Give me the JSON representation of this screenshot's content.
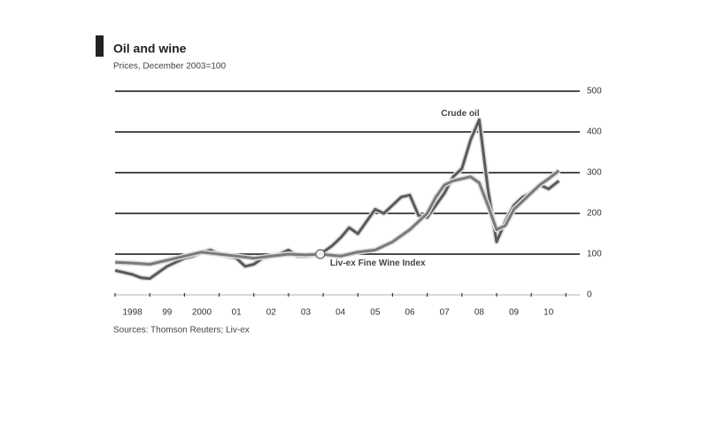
{
  "chart_data": {
    "type": "line",
    "title": "Oil and wine",
    "subtitle": "Prices, December 2003=100",
    "source": "Sources: Thomson Reuters; Liv-ex",
    "xlim": [
      1998,
      2011.4
    ],
    "xticks": [
      1998,
      1999,
      2000,
      2001,
      2002,
      2003,
      2004,
      2005,
      2006,
      2007,
      2008,
      2009,
      2010,
      2011
    ],
    "x_labels": [
      {
        "value": 1998.5,
        "label": "1998"
      },
      {
        "value": 1999.5,
        "label": "99"
      },
      {
        "value": 2000.5,
        "label": "2000"
      },
      {
        "value": 2001.5,
        "label": "01"
      },
      {
        "value": 2002.5,
        "label": "02"
      },
      {
        "value": 2003.5,
        "label": "03"
      },
      {
        "value": 2004.5,
        "label": "04"
      },
      {
        "value": 2005.5,
        "label": "05"
      },
      {
        "value": 2006.5,
        "label": "06"
      },
      {
        "value": 2007.5,
        "label": "07"
      },
      {
        "value": 2008.5,
        "label": "08"
      },
      {
        "value": 2009.5,
        "label": "09"
      },
      {
        "value": 2010.5,
        "label": "10"
      }
    ],
    "ylim": [
      0,
      500
    ],
    "yticks": [
      0,
      100,
      200,
      300,
      400,
      500
    ],
    "grid": true,
    "marker": {
      "x": 2003.917,
      "y": 100
    },
    "series": [
      {
        "name": "Crude oil",
        "color": "#5a5a5a",
        "x": [
          1998,
          1998.25,
          1998.5,
          1998.75,
          1999,
          1999.25,
          1999.5,
          1999.75,
          2000,
          2000.25,
          2000.5,
          2000.75,
          2001,
          2001.25,
          2001.5,
          2001.75,
          2002,
          2002.25,
          2002.5,
          2002.75,
          2003,
          2003.25,
          2003.5,
          2003.917,
          2004.25,
          2004.5,
          2004.75,
          2005,
          2005.25,
          2005.5,
          2005.75,
          2006,
          2006.25,
          2006.5,
          2006.75,
          2007,
          2007.25,
          2007.5,
          2007.75,
          2008,
          2008.25,
          2008.5,
          2008.75,
          2009,
          2009.25,
          2009.5,
          2009.75,
          2010,
          2010.25,
          2010.5,
          2010.8
        ],
        "values": [
          60,
          55,
          50,
          42,
          40,
          55,
          70,
          80,
          90,
          95,
          105,
          110,
          100,
          95,
          90,
          70,
          75,
          90,
          95,
          100,
          110,
          95,
          95,
          100,
          120,
          140,
          165,
          150,
          180,
          210,
          200,
          220,
          240,
          245,
          195,
          190,
          220,
          250,
          290,
          310,
          380,
          430,
          260,
          130,
          180,
          220,
          240,
          250,
          270,
          260,
          280
        ],
        "label_pos": {
          "x": 2007.4,
          "y": 445
        }
      },
      {
        "name": "Liv-ex Fine Wine Index",
        "color": "#7a7a7a",
        "x": [
          1998,
          1998.5,
          1999,
          1999.5,
          2000,
          2000.5,
          2001,
          2001.5,
          2002,
          2002.5,
          2003,
          2003.5,
          2003.917,
          2004.5,
          2005,
          2005.5,
          2006,
          2006.5,
          2007,
          2007.25,
          2007.5,
          2007.75,
          2008,
          2008.25,
          2008.5,
          2008.75,
          2009,
          2009.25,
          2009.5,
          2009.75,
          2010,
          2010.25,
          2010.5,
          2010.8
        ],
        "values": [
          80,
          78,
          75,
          85,
          95,
          105,
          100,
          95,
          90,
          95,
          100,
          98,
          100,
          95,
          105,
          110,
          130,
          160,
          200,
          240,
          270,
          280,
          285,
          290,
          275,
          220,
          160,
          170,
          210,
          230,
          250,
          270,
          285,
          305
        ],
        "label_pos": {
          "x": 2004.2,
          "y": 78
        }
      }
    ]
  }
}
